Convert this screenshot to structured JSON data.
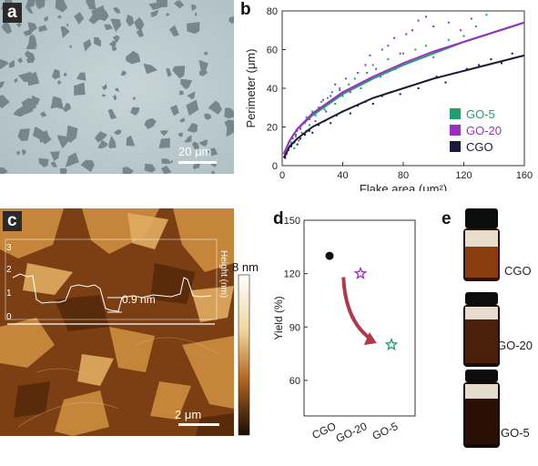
{
  "panels": {
    "a": {
      "label": "a",
      "scalebar": "20 μm"
    },
    "b": {
      "label": "b"
    },
    "c": {
      "label": "c",
      "scalebar": "2 μm",
      "profile_step": "0.9 nm",
      "inset_yticks": [
        "0",
        "1",
        "2",
        "3"
      ],
      "inset_ylabel": "Height (nm)",
      "colorbar_max": "8 nm"
    },
    "d": {
      "label": "d"
    },
    "e": {
      "label": "e",
      "vials": [
        "CGO",
        "GO-20",
        "GO-5"
      ]
    }
  },
  "chart_data": [
    {
      "type": "scatter",
      "panel": "b",
      "xlabel": "Flake area (μm²)",
      "ylabel": "Perimeter (μm)",
      "xlim": [
        0,
        160
      ],
      "ylim": [
        0,
        80
      ],
      "xticks": [
        0,
        40,
        80,
        120,
        160
      ],
      "yticks": [
        0,
        20,
        40,
        60,
        80
      ],
      "legend_position": "bottom-right",
      "series": [
        {
          "name": "GO-5",
          "color": "#1f9e6e",
          "fit": [
            [
              1,
              6
            ],
            [
              5,
              13
            ],
            [
              10,
              19
            ],
            [
              20,
              26
            ],
            [
              40,
              37
            ],
            [
              60,
              45
            ],
            [
              80,
              52
            ],
            [
              100,
              58
            ],
            [
              120,
              64
            ],
            [
              140,
              69
            ],
            [
              160,
              74
            ]
          ],
          "points": [
            [
              3,
              6
            ],
            [
              5,
              10
            ],
            [
              6,
              12
            ],
            [
              8,
              9
            ],
            [
              9,
              15
            ],
            [
              10,
              18
            ],
            [
              12,
              20
            ],
            [
              13,
              17
            ],
            [
              15,
              22
            ],
            [
              16,
              25
            ],
            [
              18,
              21
            ],
            [
              20,
              28
            ],
            [
              22,
              26
            ],
            [
              24,
              30
            ],
            [
              26,
              33
            ],
            [
              28,
              29
            ],
            [
              30,
              35
            ],
            [
              33,
              38
            ],
            [
              35,
              32
            ],
            [
              38,
              40
            ],
            [
              40,
              36
            ],
            [
              44,
              42
            ],
            [
              48,
              45
            ],
            [
              52,
              40
            ],
            [
              56,
              48
            ],
            [
              60,
              52
            ],
            [
              65,
              46
            ],
            [
              70,
              55
            ],
            [
              75,
              50
            ],
            [
              80,
              58
            ],
            [
              88,
              60
            ],
            [
              95,
              62
            ],
            [
              100,
              56
            ],
            [
              110,
              65
            ],
            [
              120,
              67
            ],
            [
              128,
              72
            ],
            [
              135,
              78
            ]
          ]
        },
        {
          "name": "GO-20",
          "color": "#9b30c0",
          "fit": [
            [
              1,
              6
            ],
            [
              5,
              13
            ],
            [
              10,
              19
            ],
            [
              20,
              27
            ],
            [
              40,
              38
            ],
            [
              60,
              46
            ],
            [
              80,
              53
            ],
            [
              100,
              59
            ],
            [
              120,
              64
            ],
            [
              140,
              69
            ],
            [
              160,
              74
            ]
          ],
          "points": [
            [
              2,
              5
            ],
            [
              4,
              9
            ],
            [
              6,
              11
            ],
            [
              7,
              14
            ],
            [
              9,
              16
            ],
            [
              11,
              13
            ],
            [
              12,
              19
            ],
            [
              14,
              22
            ],
            [
              16,
              18
            ],
            [
              18,
              24
            ],
            [
              20,
              27
            ],
            [
              22,
              23
            ],
            [
              25,
              30
            ],
            [
              27,
              34
            ],
            [
              29,
              28
            ],
            [
              32,
              36
            ],
            [
              35,
              42
            ],
            [
              38,
              39
            ],
            [
              42,
              45
            ],
            [
              45,
              38
            ],
            [
              50,
              48
            ],
            [
              55,
              52
            ],
            [
              58,
              57
            ],
            [
              62,
              50
            ],
            [
              66,
              60
            ],
            [
              70,
              62
            ],
            [
              74,
              66
            ],
            [
              78,
              58
            ],
            [
              82,
              68
            ],
            [
              86,
              70
            ],
            [
              90,
              75
            ],
            [
              95,
              77
            ],
            [
              100,
              72
            ],
            [
              110,
              74
            ],
            [
              118,
              70
            ],
            [
              125,
              76
            ]
          ]
        },
        {
          "name": "CGO",
          "color": "#1a1a3a",
          "fit": [
            [
              1,
              4
            ],
            [
              5,
              10
            ],
            [
              10,
              14
            ],
            [
              20,
              20
            ],
            [
              40,
              28
            ],
            [
              60,
              35
            ],
            [
              80,
              40
            ],
            [
              100,
              45
            ],
            [
              120,
              49
            ],
            [
              140,
              53
            ],
            [
              160,
              57
            ]
          ],
          "points": [
            [
              2,
              4
            ],
            [
              4,
              8
            ],
            [
              6,
              10
            ],
            [
              8,
              12
            ],
            [
              10,
              11
            ],
            [
              12,
              14
            ],
            [
              15,
              16
            ],
            [
              18,
              18
            ],
            [
              20,
              17
            ],
            [
              24,
              21
            ],
            [
              28,
              23
            ],
            [
              32,
              22
            ],
            [
              36,
              26
            ],
            [
              40,
              28
            ],
            [
              45,
              27
            ],
            [
              50,
              31
            ],
            [
              55,
              33
            ],
            [
              60,
              32
            ],
            [
              66,
              36
            ],
            [
              72,
              38
            ],
            [
              78,
              37
            ],
            [
              84,
              41
            ],
            [
              90,
              40
            ],
            [
              96,
              44
            ],
            [
              102,
              46
            ],
            [
              108,
              43
            ],
            [
              115,
              48
            ],
            [
              122,
              50
            ],
            [
              130,
              52
            ],
            [
              138,
              55
            ],
            [
              145,
              53
            ],
            [
              152,
              58
            ]
          ]
        }
      ]
    },
    {
      "type": "scatter",
      "panel": "d",
      "categories": [
        "CGO",
        "GO-20",
        "GO-5"
      ],
      "ylabel": "Yield (%)",
      "ylim": [
        40,
        150
      ],
      "yticks": [
        60,
        90,
        120,
        150
      ],
      "series": [
        {
          "category": "CGO",
          "value": 130,
          "marker": "ball",
          "color": "#111111"
        },
        {
          "category": "GO-20",
          "value": 120,
          "marker": "star",
          "color": "#9b30c0"
        },
        {
          "category": "GO-5",
          "value": 80,
          "marker": "star",
          "color": "#1f9e6e"
        }
      ],
      "arrow": {
        "from": [
          0.45,
          118
        ],
        "to": [
          1.35,
          83
        ],
        "color": "#b0384a"
      }
    }
  ]
}
